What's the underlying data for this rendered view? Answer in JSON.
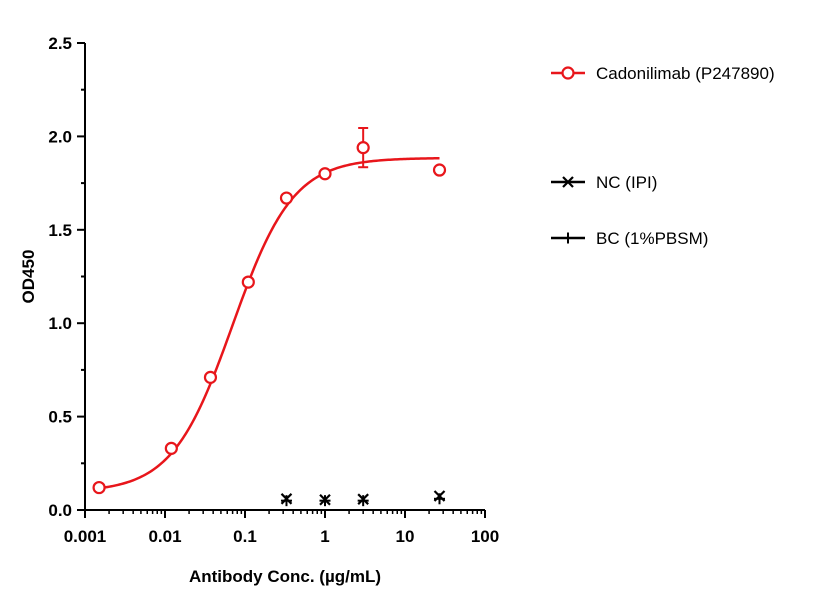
{
  "chart_data": {
    "type": "scatter",
    "title": "",
    "xlabel": "Antibody Conc. (µg/mL)",
    "ylabel": "OD450",
    "x_scale": "log",
    "xlim": [
      0.001,
      100
    ],
    "ylim": [
      0,
      2.5
    ],
    "x_ticks": [
      0.001,
      0.01,
      0.1,
      1,
      10,
      100
    ],
    "x_tick_labels": [
      "0.001",
      "0.01",
      "0.1",
      "1",
      "10",
      "100"
    ],
    "y_ticks": [
      0,
      0.5,
      1.0,
      1.5,
      2.0,
      2.5
    ],
    "y_tick_labels": [
      "0.0",
      "0.5",
      "1.0",
      "1.5",
      "2.0",
      "2.5"
    ],
    "grid": false,
    "legend_position": "right",
    "series": [
      {
        "name": "Cadonilimab (P247890)",
        "color": "#e8161b",
        "marker": "open-circle",
        "fit": "sigmoidal",
        "points": [
          {
            "x": 0.0015,
            "y": 0.12
          },
          {
            "x": 0.012,
            "y": 0.33
          },
          {
            "x": 0.037,
            "y": 0.71
          },
          {
            "x": 0.11,
            "y": 1.22
          },
          {
            "x": 0.33,
            "y": 1.67
          },
          {
            "x": 1.0,
            "y": 1.8
          },
          {
            "x": 3.0,
            "y": 1.94,
            "err": 0.105
          },
          {
            "x": 27,
            "y": 1.82
          }
        ]
      },
      {
        "name": "NC (IPI)",
        "color": "#000000",
        "marker": "x",
        "points": [
          {
            "x": 0.33,
            "y": 0.06
          },
          {
            "x": 1.0,
            "y": 0.055
          },
          {
            "x": 3.0,
            "y": 0.058
          },
          {
            "x": 27,
            "y": 0.075
          }
        ]
      },
      {
        "name": "BC (1%PBSM)",
        "color": "#000000",
        "marker": "plus",
        "points": [
          {
            "x": 0.33,
            "y": 0.05
          },
          {
            "x": 1.0,
            "y": 0.05
          },
          {
            "x": 3.0,
            "y": 0.05
          },
          {
            "x": 27,
            "y": 0.06
          }
        ]
      }
    ],
    "curve_fit": {
      "series": "Cadonilimab (P247890)",
      "bottom": 0.095,
      "top": 1.885,
      "ec50": 0.07,
      "hill": 1.15
    }
  }
}
